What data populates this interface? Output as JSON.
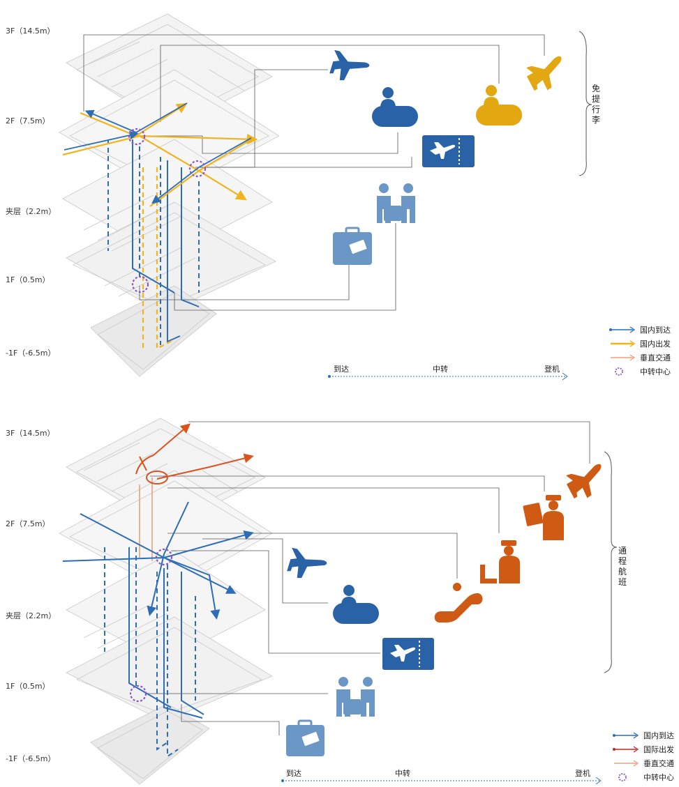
{
  "colors": {
    "domestic_arrival": "#2c6db5",
    "domestic_departure": "#f2b31c",
    "international_departure": "#d9541e",
    "vertical": "#e8a07a",
    "icon_blue": "#2a62a8",
    "icon_light_blue": "#6b97c6",
    "icon_gold": "#e3a712",
    "icon_orange": "#cf5a13",
    "hub": "#8a55c4",
    "connector": "#555555"
  },
  "floors": [
    "3F（14.5m）",
    "2F（7.5m）",
    "夹层（2.2m）",
    "1F（0.5m）",
    "-1F（-6.5m）"
  ],
  "top": {
    "side_label": "免提行李",
    "legend": [
      "国内到达",
      "国内出发",
      "垂直交通",
      "中转中心"
    ],
    "timeline": {
      "start": "到达",
      "middle": "中转",
      "end": "登机"
    },
    "icons": [
      "airplane-icon",
      "check-in-counter-icon",
      "boarding-pass-icon",
      "baggage-claim-icon",
      "luggage-icon",
      "departure-plane-icon",
      "transfer-counter-icon"
    ]
  },
  "bottom": {
    "side_label": "通程航班",
    "legend": [
      "国内到达",
      "国际出发",
      "垂直交通",
      "中转中心"
    ],
    "timeline": {
      "start": "到达",
      "middle": "中转",
      "end": "登机"
    },
    "icons": [
      "airplane-icon",
      "check-in-counter-icon",
      "boarding-pass-icon",
      "baggage-claim-icon",
      "luggage-icon",
      "departure-plane-icon",
      "passport-control-icon",
      "security-officer-icon",
      "escalator-icon"
    ]
  }
}
